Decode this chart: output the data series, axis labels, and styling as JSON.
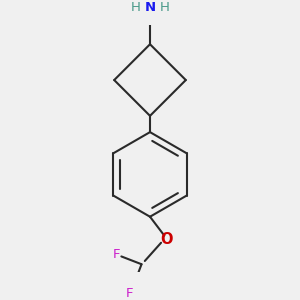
{
  "background_color": "#f0f0f0",
  "bond_color": "#2a2a2a",
  "nitrogen_color": "#1a1aee",
  "nitrogen_h_color": "#4a9a8a",
  "oxygen_color": "#cc0000",
  "fluorine_color": "#cc22cc",
  "bond_width": 1.5,
  "fig_width": 3.0,
  "fig_height": 3.0,
  "dpi": 100,
  "xlim": [
    -1.5,
    1.5
  ],
  "ylim": [
    -2.0,
    1.8
  ]
}
